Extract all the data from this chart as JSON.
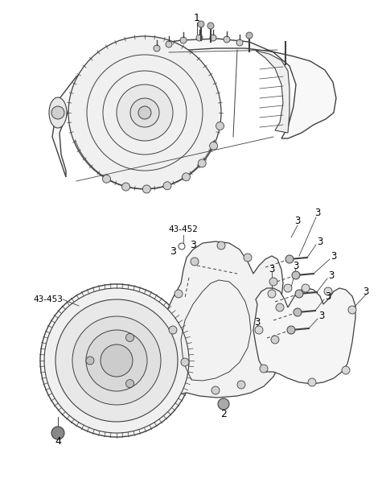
{
  "bg_color": "#ffffff",
  "line_color": "#404040",
  "label_color": "#000000",
  "fig_w": 4.8,
  "fig_h": 6.2,
  "dpi": 100
}
